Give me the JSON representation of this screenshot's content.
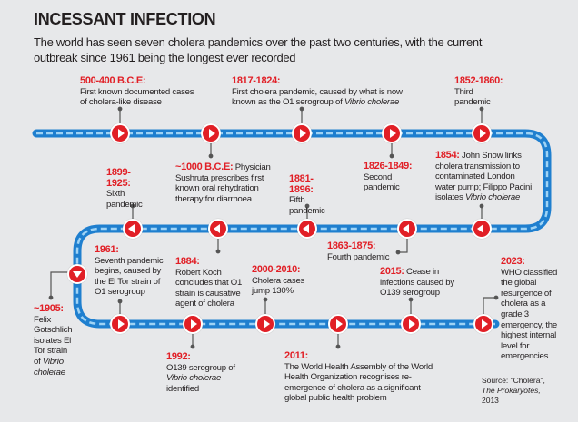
{
  "header": {
    "title": "INCESSANT INFECTION",
    "subtitle": "The world has seen seven cholera pandemics over the past two centuries, with the current outbreak since 1961 being the longest ever recorded"
  },
  "colors": {
    "track": "#1f7fcf",
    "marker": "#e11f26",
    "date": "#e11f26",
    "background": "#e7e8ea"
  },
  "events": {
    "e500bce": {
      "date": "500-400 B.C.E:",
      "text": "First known documented cases of cholera-like disease"
    },
    "e1000bce": {
      "date": "~1000 B.C.E:",
      "text": " Physician Sushruta prescribes first known oral rehydration therapy for diarrhoea"
    },
    "e1817": {
      "date": "1817-1824:",
      "text": "First cholera pandemic, caused by what is now known as the O1 serogroup of ",
      "italic": "Vibrio cholerae"
    },
    "e1826": {
      "date": "1826-1849:",
      "text": "Second pandemic"
    },
    "e1852": {
      "date": "1852-1860:",
      "text": "Third pandemic"
    },
    "e1854": {
      "date": "1854:",
      "text": " John Snow links cholera transmission to contaminated London water pump; Filippo Pacini isolates ",
      "italic": "Vibrio cholerae"
    },
    "e1863": {
      "date": "1863-1875:",
      "text": "Fourth pandemic"
    },
    "e1881": {
      "date": "1881-1896:",
      "text": "Fifth pandemic"
    },
    "e1884": {
      "date": "1884:",
      "text": "Robert Koch concludes that O1 strain is causative agent of cholera"
    },
    "e1899": {
      "date": "1899-1925:",
      "text": "Sixth pandemic"
    },
    "e1905": {
      "date": "~1905:",
      "text": "Felix Gotschlich isolates El Tor strain of ",
      "italic": "Vibrio cholerae"
    },
    "e1961": {
      "date": "1961:",
      "text": "Seventh pandemic begins, caused by the El Tor strain of O1 serogroup"
    },
    "e1992": {
      "date": "1992:",
      "text": "O139 serogroup of ",
      "italic": "Vibrio cholerae",
      "after": " identified"
    },
    "e2000": {
      "date": "2000-2010:",
      "text": "Cholera cases jump 130%"
    },
    "e2011": {
      "date": "2011:",
      "text": "The World Health Assembly of the World Health Organization recognises re-emergence of cholera as a significant global public health problem"
    },
    "e2015": {
      "date": "2015:",
      "text": " Cease in infections caused by O139 serogroup"
    },
    "e2023": {
      "date": "2023:",
      "text": "WHO classified the global resurgence of cholera as a grade 3 emergency, the highest internal level for emergencies"
    }
  },
  "source": {
    "prefix": "Source: \"Cholera\",",
    "italic": "The Prokaryotes,",
    "year": "2013"
  }
}
